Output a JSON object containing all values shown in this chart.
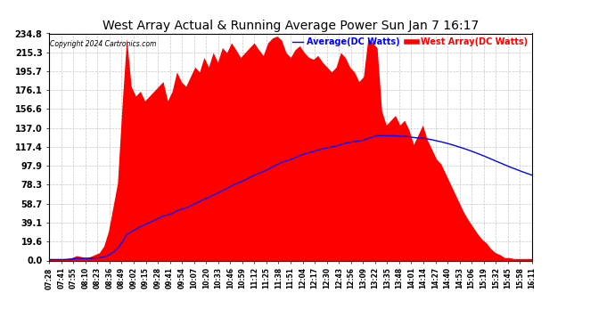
{
  "title": "West Array Actual & Running Average Power Sun Jan 7 16:17",
  "copyright": "Copyright 2024 Cartronics.com",
  "legend_avg": "Average(DC Watts)",
  "legend_west": "West Array(DC Watts)",
  "yticks": [
    0.0,
    19.6,
    39.1,
    58.7,
    78.3,
    97.9,
    117.4,
    137.0,
    156.6,
    176.1,
    195.7,
    215.3,
    234.8
  ],
  "ymax": 234.8,
  "background_color": "#ffffff",
  "bar_color": "#ff0000",
  "avg_color": "#0000ff",
  "grid_color": "#c8c8c8",
  "title_color": "#000000",
  "copyright_color": "#000000",
  "xtick_labels": [
    "07:28",
    "07:41",
    "07:55",
    "08:10",
    "08:23",
    "08:36",
    "08:49",
    "09:02",
    "09:15",
    "09:28",
    "09:41",
    "09:54",
    "10:07",
    "10:20",
    "10:33",
    "10:46",
    "10:59",
    "11:12",
    "11:25",
    "11:38",
    "11:51",
    "12:04",
    "12:17",
    "12:30",
    "12:43",
    "12:56",
    "13:09",
    "13:22",
    "13:35",
    "13:48",
    "14:01",
    "14:14",
    "14:27",
    "14:40",
    "14:53",
    "15:06",
    "15:19",
    "15:32",
    "15:45",
    "15:58",
    "16:11"
  ],
  "actual_data": [
    1,
    1,
    1,
    1,
    2,
    3,
    5,
    4,
    3,
    4,
    6,
    8,
    15,
    30,
    55,
    80,
    160,
    230,
    180,
    170,
    175,
    165,
    170,
    175,
    180,
    185,
    165,
    175,
    195,
    185,
    180,
    190,
    200,
    195,
    210,
    200,
    215,
    205,
    220,
    215,
    225,
    218,
    210,
    215,
    220,
    225,
    218,
    212,
    225,
    230,
    232,
    228,
    215,
    210,
    218,
    222,
    215,
    210,
    208,
    212,
    205,
    200,
    195,
    200,
    215,
    210,
    200,
    195,
    185,
    190,
    230,
    225,
    220,
    155,
    140,
    145,
    150,
    140,
    145,
    135,
    120,
    130,
    140,
    125,
    115,
    105,
    100,
    90,
    80,
    70,
    60,
    50,
    42,
    35,
    28,
    22,
    18,
    12,
    8,
    6,
    3,
    3,
    2,
    2,
    2,
    2,
    2
  ],
  "avg_data": [
    1.0,
    1.0,
    1.0,
    1.0,
    1.2,
    1.5,
    2.1,
    2.3,
    2.2,
    2.3,
    2.5,
    2.9,
    3.8,
    5.4,
    8.4,
    12.5,
    18.8,
    26.8,
    29.7,
    32.3,
    35.0,
    37.1,
    39.2,
    41.4,
    43.7,
    46.1,
    47.2,
    48.7,
    51.3,
    53.1,
    54.4,
    56.4,
    58.9,
    60.9,
    63.3,
    65.2,
    67.7,
    69.7,
    72.2,
    74.5,
    77.0,
    79.4,
    81.2,
    83.3,
    85.7,
    88.2,
    90.2,
    92.0,
    94.2,
    96.7,
    99.1,
    101.4,
    103.0,
    104.4,
    106.4,
    108.5,
    110.1,
    111.5,
    112.8,
    114.3,
    115.5,
    116.5,
    117.4,
    118.4,
    119.9,
    121.2,
    122.1,
    122.9,
    123.6,
    124.4,
    126.2,
    127.7,
    129.2,
    129.1,
    129.0,
    128.9,
    128.9,
    128.6,
    128.5,
    128.0,
    127.2,
    126.7,
    126.5,
    125.8,
    124.9,
    123.8,
    122.8,
    121.6,
    120.3,
    118.9,
    117.4,
    115.9,
    114.3,
    112.6,
    110.8,
    108.9,
    107.0,
    105.0,
    103.0,
    101.0,
    99.0,
    97.0,
    95.2,
    93.4,
    91.6,
    89.9,
    88.3
  ]
}
